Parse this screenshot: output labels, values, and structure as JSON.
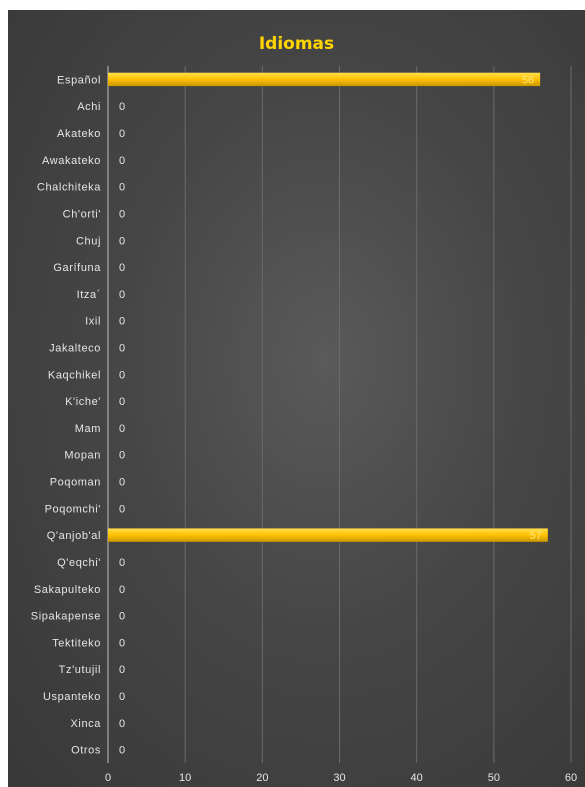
{
  "chart_data": {
    "type": "bar",
    "orientation": "horizontal",
    "title": "Idiomas",
    "categories": [
      "Español",
      "Achi",
      "Akateko",
      "Awakateko",
      "Chalchiteka",
      "Ch'orti'",
      "Chuj",
      "Garífuna",
      "Itza´",
      "Ixil",
      "Jakalteco",
      "Kaqchikel",
      "K'iche'",
      "Mam",
      "Mopan",
      "Poqoman",
      "Poqomchi'",
      "Q'anjob'al",
      "Q'eqchi'",
      "Sakapulteko",
      "Sipakapense",
      "Tektiteko",
      "Tz'utujil",
      "Uspanteko",
      "Xinca",
      "Otros"
    ],
    "values": [
      56,
      0,
      0,
      0,
      0,
      0,
      0,
      0,
      0,
      0,
      0,
      0,
      0,
      0,
      0,
      0,
      0,
      57,
      0,
      0,
      0,
      0,
      0,
      0,
      0,
      0
    ],
    "xlim": [
      0,
      60
    ],
    "xticks": [
      0,
      10,
      20,
      30,
      40,
      50,
      60
    ],
    "grid": true,
    "colors": {
      "bar": "#ffc000",
      "title": "#ffd400",
      "background": "#474747"
    }
  }
}
